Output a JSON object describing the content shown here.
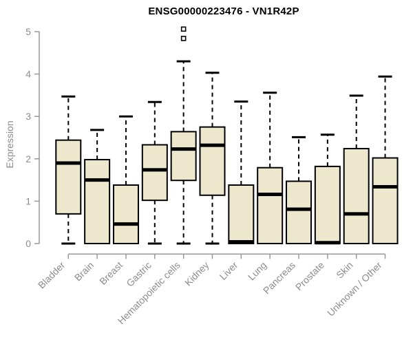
{
  "chart_data": {
    "type": "boxplot",
    "title": "ENSG00000223476 - VN1R42P",
    "ylabel": "Expression",
    "xlabel": "",
    "ylim": [
      0,
      5
    ],
    "y_ticks": [
      0,
      1,
      2,
      3,
      4,
      5
    ],
    "grid": false,
    "legend": false,
    "categories": [
      "Bladder",
      "Brain",
      "Breast",
      "Gastric",
      "Hematopoietic cells",
      "Kidney",
      "Liver",
      "Lung",
      "Pancreas",
      "Prostate",
      "Skin",
      "Unknown / Other"
    ],
    "series": [
      {
        "category": "Bladder",
        "min": 0,
        "q1": 0.7,
        "median": 1.9,
        "q3": 2.44,
        "max": 3.47,
        "outliers": []
      },
      {
        "category": "Brain",
        "min": 0,
        "q1": 0.0,
        "median": 1.5,
        "q3": 1.98,
        "max": 2.68,
        "outliers": []
      },
      {
        "category": "Breast",
        "min": 0,
        "q1": 0.0,
        "median": 0.46,
        "q3": 1.38,
        "max": 3.0,
        "outliers": []
      },
      {
        "category": "Gastric",
        "min": 0,
        "q1": 1.02,
        "median": 1.74,
        "q3": 2.33,
        "max": 3.34,
        "outliers": []
      },
      {
        "category": "Hematopoietic cells",
        "min": 0,
        "q1": 1.49,
        "median": 2.23,
        "q3": 2.64,
        "max": 4.3,
        "outliers": [
          4.84,
          5.06
        ]
      },
      {
        "category": "Kidney",
        "min": 0,
        "q1": 1.14,
        "median": 2.32,
        "q3": 2.75,
        "max": 4.03,
        "outliers": []
      },
      {
        "category": "Liver",
        "min": 0,
        "q1": 0.0,
        "median": 0.04,
        "q3": 1.38,
        "max": 3.35,
        "outliers": []
      },
      {
        "category": "Lung",
        "min": 0,
        "q1": 0.0,
        "median": 1.16,
        "q3": 1.79,
        "max": 3.56,
        "outliers": []
      },
      {
        "category": "Pancreas",
        "min": 0,
        "q1": 0.0,
        "median": 0.81,
        "q3": 1.47,
        "max": 2.51,
        "outliers": []
      },
      {
        "category": "Prostate",
        "min": 0,
        "q1": 0.0,
        "median": 0.02,
        "q3": 1.82,
        "max": 2.57,
        "outliers": []
      },
      {
        "category": "Skin",
        "min": 0,
        "q1": 0.0,
        "median": 0.7,
        "q3": 2.24,
        "max": 3.49,
        "outliers": []
      },
      {
        "category": "Unknown / Other",
        "min": 0,
        "q1": 0.0,
        "median": 1.34,
        "q3": 2.02,
        "max": 3.94,
        "outliers": []
      }
    ],
    "style": {
      "box_fill": "#EDE8CD",
      "box_border": "#000000",
      "median_color": "#000000",
      "whisker_color": "#000000",
      "outlier_fill": "#FFFFFF",
      "axis_color": "#979797",
      "tick_label_color": "#8C8C8C",
      "title_color": "#000000",
      "background": "#FFFFFF"
    }
  }
}
